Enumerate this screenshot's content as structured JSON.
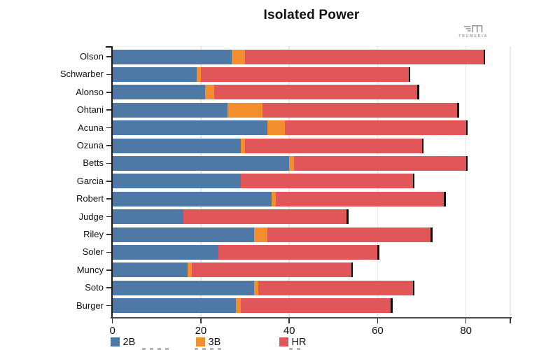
{
  "title": "Isolated Power",
  "branding": {
    "logo_text": "TRUMEDIA"
  },
  "legend": {
    "items": [
      {
        "label": "2B",
        "color": "#4e79a7"
      },
      {
        "label": "3B",
        "color": "#f28e2b"
      },
      {
        "label": "HR",
        "color": "#e15759"
      }
    ]
  },
  "chart_data": {
    "type": "bar",
    "orientation": "horizontal",
    "stacked": true,
    "title": "Isolated Power",
    "categories": [
      "Olson",
      "Schwarber",
      "Alonso",
      "Ohtani",
      "Acuna",
      "Ozuna",
      "Betts",
      "Garcia",
      "Robert",
      "Judge",
      "Riley",
      "Soler",
      "Muncy",
      "Soto",
      "Burger"
    ],
    "series": [
      {
        "name": "2B",
        "color": "#4e79a7",
        "values": [
          27,
          19,
          21,
          26,
          35,
          29,
          40,
          29,
          36,
          16,
          32,
          24,
          17,
          32,
          28
        ]
      },
      {
        "name": "3B",
        "color": "#f28e2b",
        "values": [
          3,
          1,
          2,
          8,
          4,
          1,
          1,
          0,
          1,
          0,
          3,
          0,
          1,
          1,
          1
        ]
      },
      {
        "name": "HR",
        "color": "#e15759",
        "values": [
          54,
          47,
          46,
          44,
          41,
          40,
          39,
          39,
          38,
          37,
          37,
          36,
          36,
          35,
          34
        ]
      }
    ],
    "totals": [
      84,
      67,
      69,
      78,
      80,
      70,
      80,
      68,
      75,
      53,
      72,
      60,
      54,
      68,
      63
    ],
    "xlabel": "",
    "ylabel": "",
    "x_ticks": [
      0,
      20,
      40,
      60,
      80
    ],
    "xlim": [
      0,
      90
    ],
    "grid": "vertical-light",
    "legend_position": "bottom",
    "bar_end_marker_color": "#0d0d0d"
  }
}
